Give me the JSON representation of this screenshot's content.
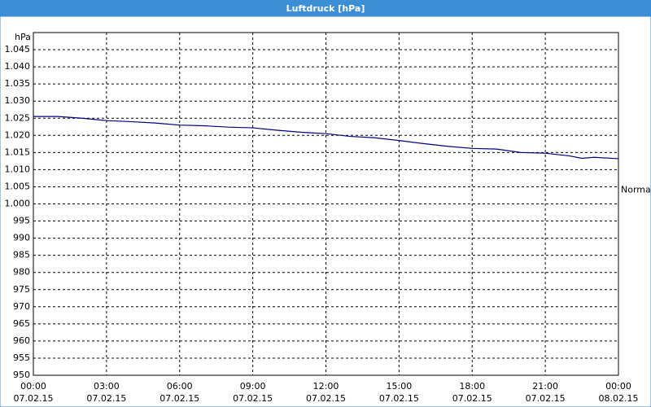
{
  "chart_data": {
    "type": "line",
    "title": "Luftdruck [hPa]",
    "y_label": "hPa",
    "x": [
      0,
      1,
      2,
      3,
      4,
      5,
      6,
      7,
      8,
      9,
      10,
      11,
      12,
      13,
      14,
      15,
      16,
      17,
      18,
      19,
      20,
      21,
      22,
      22.5,
      23,
      24
    ],
    "series": [
      {
        "color": "#000080",
        "values": [
          1025.5,
          1025.5,
          1025,
          1024.3,
          1024,
          1023.6,
          1023,
          1022.8,
          1022.4,
          1022.2,
          1021.5,
          1020.9,
          1020.5,
          1019.7,
          1019.3,
          1018.5,
          1017.6,
          1016.8,
          1016.2,
          1016,
          1015,
          1014.8,
          1014,
          1013.3,
          1013.6,
          1013.2
        ]
      }
    ],
    "xlim": [
      0,
      24
    ],
    "xticks": [
      {
        "value": 0,
        "label": "00:00",
        "sublabel": "07.02.15"
      },
      {
        "value": 3,
        "label": "03:00",
        "sublabel": "07.02.15"
      },
      {
        "value": 6,
        "label": "06:00",
        "sublabel": "07.02.15"
      },
      {
        "value": 9,
        "label": "09:00",
        "sublabel": "07.02.15"
      },
      {
        "value": 12,
        "label": "12:00",
        "sublabel": "07.02.15"
      },
      {
        "value": 15,
        "label": "15:00",
        "sublabel": "07.02.15"
      },
      {
        "value": 18,
        "label": "18:00",
        "sublabel": "07.02.15"
      },
      {
        "value": 21,
        "label": "21:00",
        "sublabel": "07.02.15"
      },
      {
        "value": 24,
        "label": "00:00",
        "sublabel": "08.02.15"
      }
    ],
    "ylim": [
      950,
      1050
    ],
    "yticks": [
      950,
      955,
      960,
      965,
      970,
      975,
      980,
      985,
      990,
      995,
      {
        "value": 1000,
        "label": "1.000"
      },
      {
        "value": 1005,
        "label": "1.005"
      },
      {
        "value": 1010,
        "label": "1.010"
      },
      {
        "value": 1015,
        "label": "1.015"
      },
      {
        "value": 1020,
        "label": "1.020"
      },
      {
        "value": 1025,
        "label": "1.025"
      },
      {
        "value": 1030,
        "label": "1.030"
      },
      {
        "value": 1035,
        "label": "1.035"
      },
      {
        "value": 1040,
        "label": "1.040"
      },
      {
        "value": 1045,
        "label": "1.045"
      }
    ],
    "annotation": {
      "label": "Normal",
      "value": 1004
    },
    "grid": true
  }
}
